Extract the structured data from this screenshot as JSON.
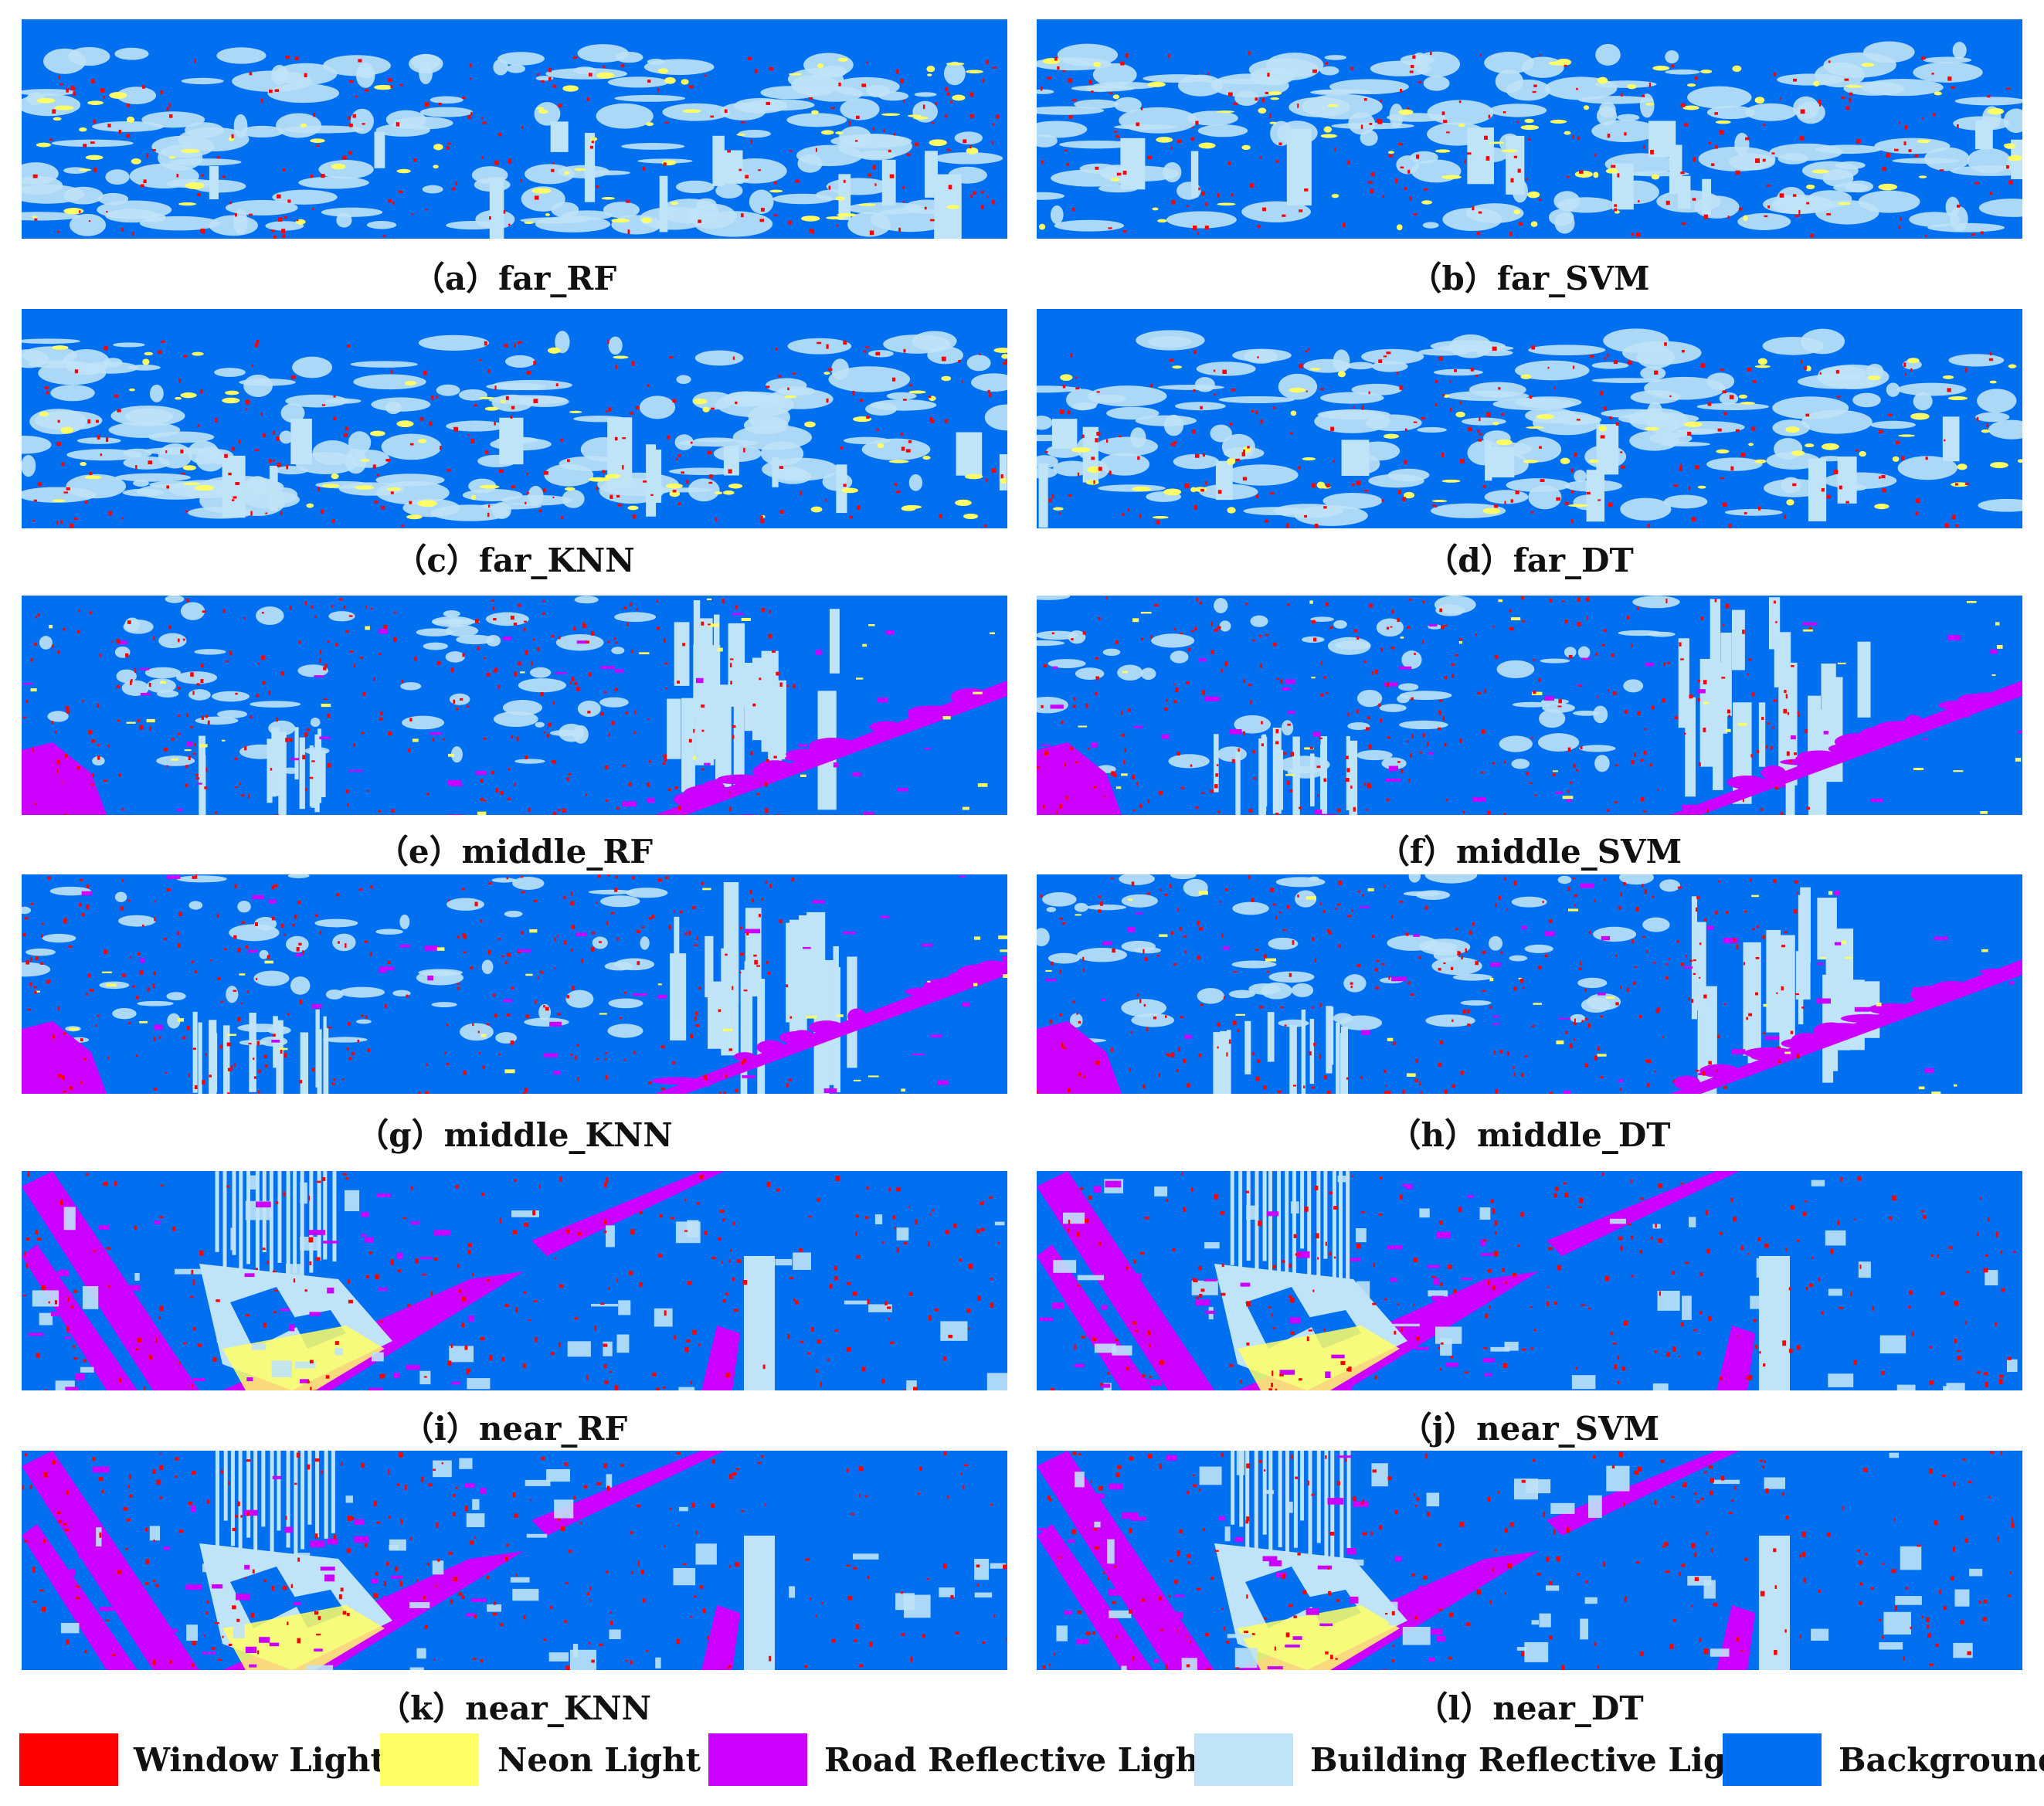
{
  "colors": {
    "window_light": "#ff0000",
    "neon_light": "#ffff66",
    "road_reflective_light": "#cc00ff",
    "building_reflective_light": "#bfe3f7",
    "background": "#0070f0"
  },
  "panels": [
    {
      "caption": "（a）far_RF",
      "scene": "far"
    },
    {
      "caption": "（b）far_SVM",
      "scene": "far"
    },
    {
      "caption": "（c）far_KNN",
      "scene": "far"
    },
    {
      "caption": "（d）far_DT",
      "scene": "far"
    },
    {
      "caption": "（e）middle_RF",
      "scene": "middle"
    },
    {
      "caption": "（f）middle_SVM",
      "scene": "middle"
    },
    {
      "caption": "（g）middle_KNN",
      "scene": "middle"
    },
    {
      "caption": "（h）middle_DT",
      "scene": "middle"
    },
    {
      "caption": "（i）near_RF",
      "scene": "near"
    },
    {
      "caption": "（j）near_SVM",
      "scene": "near"
    },
    {
      "caption": "（k）near_KNN",
      "scene": "near"
    },
    {
      "caption": "（l）near_DT",
      "scene": "near"
    }
  ],
  "legend": [
    {
      "label": "Window Light",
      "color_key": "window_light"
    },
    {
      "label": "Neon Light",
      "color_key": "neon_light"
    },
    {
      "label": "Road Reflective Light",
      "color_key": "road_reflective_light"
    },
    {
      "label": "Building Reflective Light",
      "color_key": "building_reflective_light"
    },
    {
      "label": "Background",
      "color_key": "background"
    }
  ]
}
